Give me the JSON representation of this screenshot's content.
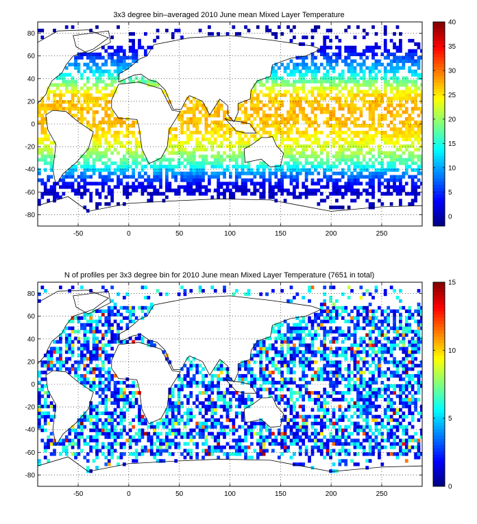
{
  "chart_data": [
    {
      "type": "heatmap",
      "title": "3x3 degree bin–averaged 2010 June mean Mixed Layer Temperature",
      "xlabel": "",
      "ylabel": "",
      "xlim": [
        -90,
        290
      ],
      "ylim": [
        -90,
        90
      ],
      "xticks": [
        -50,
        0,
        50,
        100,
        150,
        200,
        250
      ],
      "yticks": [
        -80,
        -60,
        -40,
        -20,
        0,
        20,
        40,
        60,
        80
      ],
      "grid": true,
      "bin_size_deg": 3,
      "colorbar": {
        "min": -2,
        "max": 40,
        "ticks": [
          0,
          5,
          10,
          15,
          20,
          25,
          30,
          35,
          40
        ],
        "colormap": "jet"
      },
      "zonal_profile": {
        "lat": [
          -75,
          -65,
          -55,
          -45,
          -35,
          -25,
          -15,
          -5,
          5,
          15,
          25,
          35,
          45,
          55,
          65,
          75,
          85
        ],
        "value": [
          0,
          1,
          2,
          8,
          16,
          21,
          24,
          26,
          27,
          27,
          26,
          20,
          13,
          8,
          3,
          1,
          0
        ]
      }
    },
    {
      "type": "heatmap",
      "title": "N of profiles per 3x3 degree bin for 2010 June mean Mixed Layer Temperature  (7651 in total)",
      "xlabel": "",
      "ylabel": "",
      "xlim": [
        -90,
        290
      ],
      "ylim": [
        -90,
        90
      ],
      "xticks": [
        -50,
        0,
        50,
        100,
        150,
        200,
        250
      ],
      "yticks": [
        -80,
        -60,
        -40,
        -20,
        0,
        20,
        40,
        60,
        80
      ],
      "grid": true,
      "bin_size_deg": 3,
      "total_profiles": 7651,
      "colorbar": {
        "min": 0,
        "max": 15,
        "ticks": [
          0,
          5,
          10,
          15
        ],
        "colormap": "jet"
      },
      "typical_count": 3,
      "max_count": 15
    }
  ]
}
